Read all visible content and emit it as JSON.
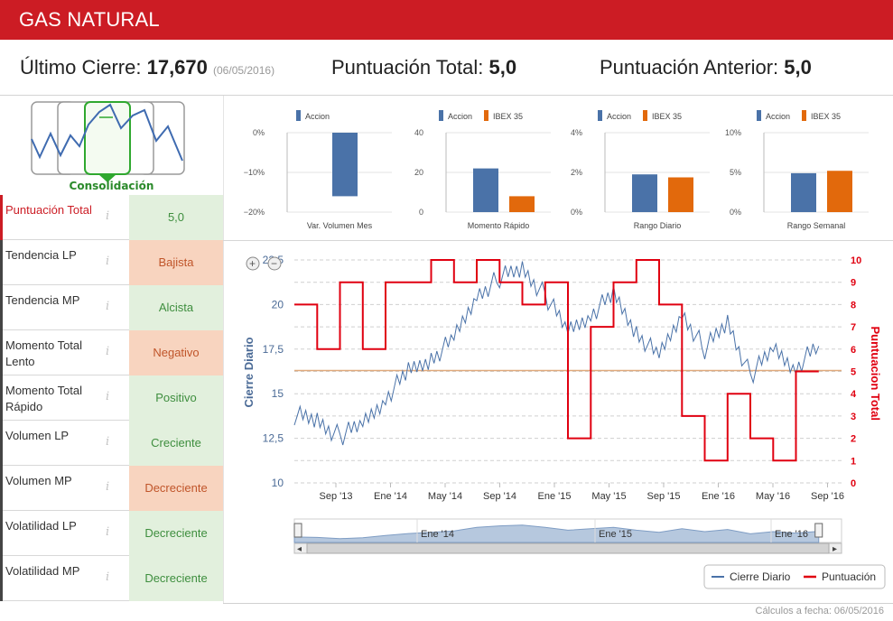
{
  "header": {
    "title": "GAS NATURAL"
  },
  "summary": {
    "last_close_label": "Último Cierre:",
    "last_close_value": "17,670",
    "last_close_date": "(06/05/2016)",
    "total_score_label": "Puntuación Total:",
    "total_score_value": "5,0",
    "prev_score_label": "Puntuación Anterior:",
    "prev_score_value": "5,0"
  },
  "pattern": {
    "label": "Consolidación"
  },
  "scores": [
    {
      "name": "Puntuación Total",
      "value": "5,0",
      "status": "pos"
    },
    {
      "name": "Tendencia LP",
      "value": "Bajista",
      "status": "neg"
    },
    {
      "name": "Tendencia MP",
      "value": "Alcista",
      "status": "pos"
    },
    {
      "name": "Momento Total Lento",
      "value": "Negativo",
      "status": "neg"
    },
    {
      "name": "Momento Total Rápido",
      "value": "Positivo",
      "status": "pos"
    },
    {
      "name": "Volumen LP",
      "value": "Creciente",
      "status": "pos"
    },
    {
      "name": "Volumen MP",
      "value": "Decreciente",
      "status": "neg"
    },
    {
      "name": "Volatilidad LP",
      "value": "Decreciente",
      "status": "pos"
    },
    {
      "name": "Volatilidad MP",
      "value": "Decreciente",
      "status": "pos"
    }
  ],
  "info_glyph": "i",
  "footer": {
    "text": "Cálculos a fecha: 06/05/2016"
  },
  "colors": {
    "accion": "#4a72a8",
    "ibex": "#e2690c",
    "cierre": "#4a72a8",
    "puntuacion": "#e00010",
    "brand": "#cc1c24"
  },
  "chart_data": [
    {
      "type": "bar",
      "title": "Var. Volumen Mes",
      "legend": [
        "Accion"
      ],
      "yticks": [
        "0%",
        "−10%",
        "−20%"
      ],
      "ylim": [
        -20,
        0
      ],
      "series": [
        {
          "name": "Accion",
          "values": [
            -16
          ]
        }
      ]
    },
    {
      "type": "bar",
      "title": "Momento Rápido",
      "legend": [
        "Accion",
        "IBEX 35"
      ],
      "yticks": [
        "40",
        "20",
        "0"
      ],
      "ylim": [
        0,
        40
      ],
      "series": [
        {
          "name": "Accion",
          "values": [
            22
          ]
        },
        {
          "name": "IBEX 35",
          "values": [
            8
          ]
        }
      ]
    },
    {
      "type": "bar",
      "title": "Rango Diario",
      "legend": [
        "Accion",
        "IBEX 35"
      ],
      "yticks": [
        "4%",
        "2%",
        "0%"
      ],
      "ylim": [
        0,
        4
      ],
      "series": [
        {
          "name": "Accion",
          "values": [
            1.9
          ]
        },
        {
          "name": "IBEX 35",
          "values": [
            1.75
          ]
        }
      ]
    },
    {
      "type": "bar",
      "title": "Rango Semanal",
      "legend": [
        "Accion",
        "IBEX 35"
      ],
      "yticks": [
        "10%",
        "5%",
        "0%"
      ],
      "ylim": [
        0,
        10
      ],
      "series": [
        {
          "name": "Accion",
          "values": [
            4.9
          ]
        },
        {
          "name": "IBEX 35",
          "values": [
            5.2
          ]
        }
      ]
    },
    {
      "type": "line",
      "title": "",
      "ylabel_left": "Cierre Diario",
      "ylabel_right": "Puntuacion Total",
      "ylim_left": [
        10,
        22.5
      ],
      "yticks_left": [
        "22,5",
        "20",
        "17,5",
        "15",
        "12,5",
        "10"
      ],
      "ylim_right": [
        0,
        10
      ],
      "yticks_right": [
        "10",
        "9",
        "8",
        "7",
        "6",
        "5",
        "4",
        "3",
        "2",
        "1",
        "0"
      ],
      "x_ticks": [
        "Sep '13",
        "Ene '14",
        "May '14",
        "Sep '14",
        "Ene '15",
        "May '15",
        "Sep '15",
        "Ene '16",
        "May '16",
        "Sep '16"
      ],
      "navigator_ticks": [
        "Ene '14",
        "Ene '15",
        "Ene '16"
      ],
      "legend": [
        "Cierre Diario",
        "Puntuación"
      ],
      "reference_line": 16.3,
      "series": [
        {
          "name": "Cierre Diario",
          "x": [
            0,
            2,
            4,
            6,
            8,
            10,
            12,
            14,
            16,
            18,
            20,
            22,
            24,
            26,
            28,
            30,
            32,
            34,
            36,
            38,
            40,
            42,
            44,
            46
          ],
          "values": [
            13.8,
            13.5,
            12.6,
            13.3,
            14.8,
            16.2,
            17.0,
            18.0,
            20.5,
            21.5,
            22.0,
            20.5,
            18.5,
            19.5,
            20.5,
            18.5,
            17.0,
            19.5,
            17.5,
            19.0,
            16.0,
            17.5,
            16.5,
            17.67
          ]
        },
        {
          "name": "Puntuación",
          "x": [
            0,
            2,
            4,
            6,
            8,
            10,
            12,
            14,
            16,
            18,
            20,
            22,
            24,
            26,
            28,
            30,
            32,
            34,
            36,
            38,
            40,
            42,
            44,
            46
          ],
          "values": [
            8,
            6,
            9,
            6,
            9,
            9,
            10,
            9,
            10,
            9,
            8,
            9,
            2,
            7,
            9,
            10,
            8,
            3,
            1,
            4,
            2,
            1,
            5,
            5
          ]
        }
      ]
    }
  ]
}
